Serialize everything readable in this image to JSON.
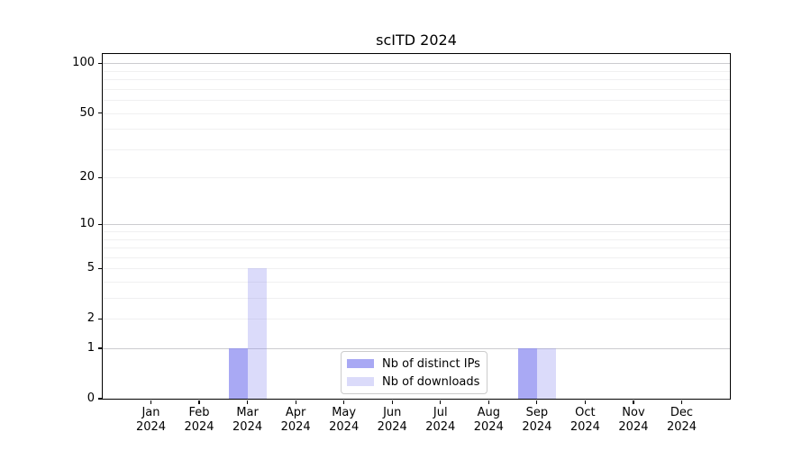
{
  "chart_data": {
    "type": "bar",
    "title": "scITD 2024",
    "x": {
      "categories": [
        "Jan",
        "Feb",
        "Mar",
        "Apr",
        "May",
        "Jun",
        "Jul",
        "Aug",
        "Sep",
        "Oct",
        "Nov",
        "Dec"
      ],
      "year": "2024"
    },
    "y_axis": {
      "scale": "log1p",
      "ticks": [
        0,
        1,
        2,
        5,
        10,
        20,
        50,
        100
      ],
      "range": [
        0,
        114
      ],
      "major_gridlines": [
        1,
        10,
        100
      ],
      "minor_gridlines": [
        2,
        3,
        4,
        5,
        6,
        7,
        8,
        9,
        20,
        30,
        40,
        50,
        60,
        70,
        80,
        90
      ]
    },
    "series": [
      {
        "name": "Nb of distinct IPs",
        "fill": "rgba(136,136,240,0.72)",
        "color_hex": "#a9a9f4",
        "values": [
          0,
          0,
          1,
          0,
          0,
          0,
          0,
          0,
          1,
          0,
          0,
          0
        ]
      },
      {
        "name": "Nb of downloads",
        "fill": "rgba(136,136,240,0.30)",
        "color_hex": "#dbdbfa",
        "values": [
          0,
          0,
          5,
          0,
          0,
          0,
          0,
          0,
          1,
          0,
          0,
          0
        ]
      }
    ],
    "legend": {
      "position": "lower center inside plot"
    }
  },
  "colors": {
    "background": "#ffffff",
    "spine": "#000000",
    "grid_major": "#cccccf",
    "grid_minor": "#f0f0f1",
    "text": "#000000",
    "legend_border": "#cccccc"
  }
}
